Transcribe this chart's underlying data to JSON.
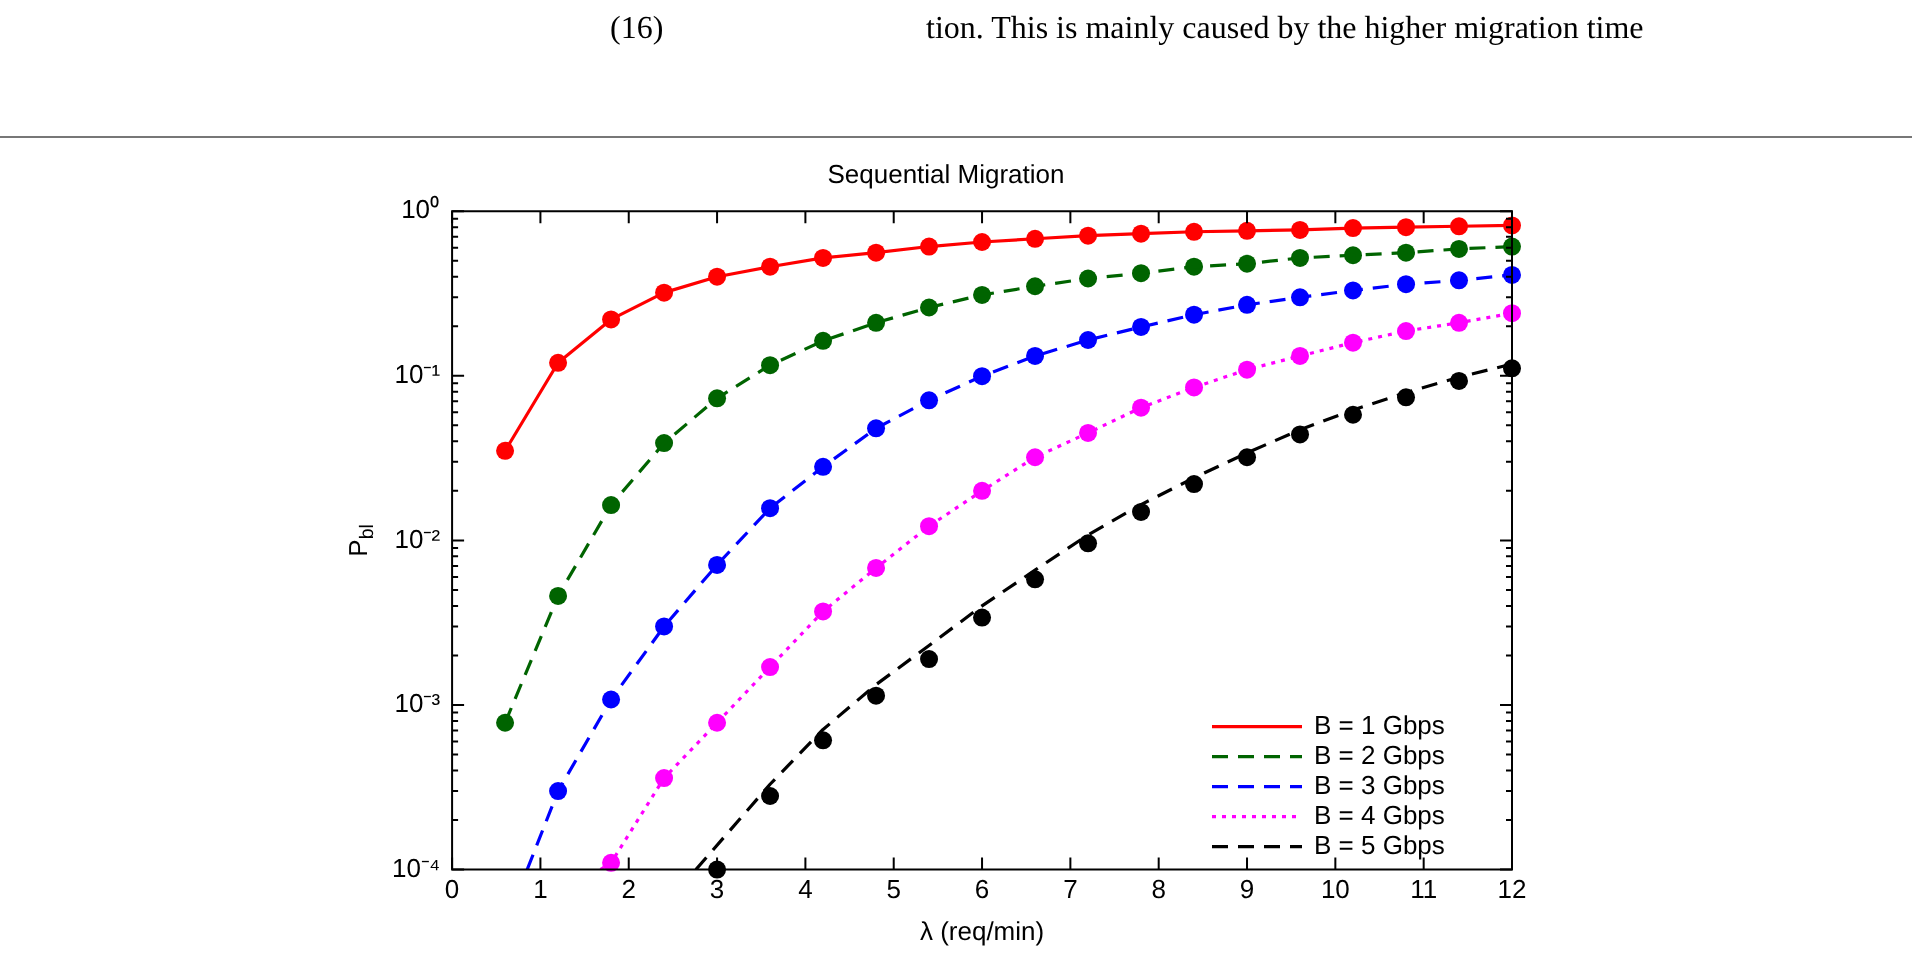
{
  "chart_data": {
    "type": "line",
    "title": "Sequential Migration",
    "xlabel": "λ (req/min)",
    "ylabel": "P$_{bl}$",
    "annotations": [
      "(16)",
      "tion. This is mainly caused by the higher migration time"
    ],
    "x": [
      0.6,
      1.2,
      1.8,
      2.4,
      3.0,
      3.6,
      4.2,
      4.8,
      5.4,
      6.0,
      6.6,
      7.2,
      7.8,
      8.4,
      9.0,
      9.6,
      10.2,
      10.8,
      11.4,
      12
    ],
    "series": [
      {
        "name": "B = 1 Gbps",
        "type": "line",
        "color": "#ff0000",
        "line_style": "solid",
        "marker": "none",
        "values": [
          0.035,
          0.12,
          0.22,
          0.32,
          0.4,
          0.46,
          0.52,
          0.56,
          0.61,
          0.65,
          0.68,
          0.71,
          0.73,
          0.75,
          0.76,
          0.77,
          0.79,
          0.8,
          0.81,
          0.82
        ]
      },
      {
        "name": "B = 2 Gbps",
        "type": "line",
        "color": "#006400",
        "line_style": "dashed",
        "marker": "none",
        "values": [
          0.00078,
          0.0046,
          0.0164,
          0.039,
          0.073,
          0.116,
          0.163,
          0.21,
          0.26,
          0.31,
          0.35,
          0.39,
          0.42,
          0.46,
          0.48,
          0.52,
          0.54,
          0.56,
          0.59,
          0.61
        ]
      },
      {
        "name": "B = 3 Gbps",
        "type": "line",
        "color": "#0000ff",
        "line_style": "dashed",
        "marker": "none",
        "x": [
          0.85,
          1.2,
          1.8,
          2.4,
          3.0,
          3.6,
          4.2,
          4.8,
          5.4,
          6.0,
          6.6,
          7.2,
          7.8,
          8.4,
          9.0,
          9.6,
          10.2,
          10.8,
          11.4,
          12
        ],
        "values": [
          0.0001,
          0.0003,
          0.00108,
          0.003,
          0.0071,
          0.0157,
          0.028,
          0.048,
          0.071,
          0.0995,
          0.132,
          0.165,
          0.198,
          0.235,
          0.27,
          0.3,
          0.33,
          0.36,
          0.38,
          0.41
        ]
      },
      {
        "name": "B = 4 Gbps",
        "type": "line",
        "color": "#ff00ff",
        "line_style": "dotted",
        "marker": "none",
        "x": [
          1.68,
          1.8,
          2.4,
          3.0,
          3.6,
          4.2,
          4.8,
          5.4,
          6.0,
          6.6,
          7.2,
          7.8,
          8.4,
          9.0,
          9.6,
          10.2,
          10.8,
          11.4,
          12
        ],
        "values": [
          0.0001,
          0.00011,
          0.00036,
          0.00078,
          0.0017,
          0.0037,
          0.0068,
          0.0122,
          0.02,
          0.032,
          0.045,
          0.064,
          0.085,
          0.109,
          0.132,
          0.159,
          0.187,
          0.21,
          0.24
        ]
      },
      {
        "name": "B = 5 Gbps",
        "type": "line",
        "color": "#000000",
        "line_style": "dashed",
        "marker": "none",
        "x": [
          2.76,
          3.6,
          4.2,
          4.8,
          5.4,
          6.0,
          6.6,
          7.2,
          7.8,
          8.4,
          9.0,
          9.6,
          10.2,
          10.8,
          11.4,
          12
        ],
        "values": [
          0.0001,
          0.00033,
          0.00071,
          0.00133,
          0.0023,
          0.004,
          0.0066,
          0.0108,
          0.0165,
          0.024,
          0.034,
          0.047,
          0.062,
          0.079,
          0.098,
          0.118
        ]
      },
      {
        "type": "scatter",
        "color": "#ff0000",
        "marker": "circle",
        "values": [
          0.035,
          0.12,
          0.22,
          0.32,
          0.4,
          0.46,
          0.52,
          0.56,
          0.61,
          0.65,
          0.68,
          0.71,
          0.73,
          0.75,
          0.76,
          0.77,
          0.79,
          0.8,
          0.81,
          0.82
        ]
      },
      {
        "type": "scatter",
        "color": "#006400",
        "marker": "circle",
        "values": [
          0.00078,
          0.0046,
          0.0164,
          0.039,
          0.073,
          0.116,
          0.163,
          0.21,
          0.26,
          0.31,
          0.35,
          0.39,
          0.42,
          0.46,
          0.48,
          0.52,
          0.54,
          0.56,
          0.59,
          0.61
        ]
      },
      {
        "type": "scatter",
        "color": "#0000ff",
        "marker": "circle",
        "values": [
          null,
          0.0003,
          0.00108,
          0.003,
          0.0071,
          0.0157,
          0.028,
          0.048,
          0.071,
          0.0995,
          0.132,
          0.165,
          0.198,
          0.235,
          0.27,
          0.3,
          0.33,
          0.36,
          0.38,
          0.41
        ]
      },
      {
        "type": "scatter",
        "color": "#ff00ff",
        "marker": "circle",
        "values": [
          null,
          null,
          0.00011,
          0.00036,
          0.00078,
          0.0017,
          0.0037,
          0.0068,
          0.0122,
          0.02,
          0.032,
          0.045,
          0.064,
          0.085,
          0.109,
          0.132,
          0.159,
          0.187,
          0.21,
          0.24
        ]
      },
      {
        "type": "scatter",
        "color": "#000000",
        "marker": "circle",
        "values": [
          null,
          null,
          null,
          null,
          0.0001,
          0.00028,
          0.00061,
          0.00114,
          0.0019,
          0.0034,
          0.0058,
          0.0096,
          0.0149,
          0.022,
          0.032,
          0.044,
          0.058,
          0.074,
          0.093,
          0.111
        ]
      }
    ],
    "xlim": [
      0,
      12
    ],
    "xticks": [
      0,
      1,
      2,
      3,
      4,
      5,
      6,
      7,
      8,
      9,
      10,
      11,
      12
    ],
    "ylim": [
      0.0001,
      1
    ],
    "yticks": [
      {
        "value": 0.0001,
        "label": "10⁻⁴"
      },
      {
        "value": 0.001,
        "label": "10⁻³"
      },
      {
        "value": 0.01,
        "label": "10⁻²"
      },
      {
        "value": 0.1,
        "label": "10⁻¹"
      },
      {
        "value": 1,
        "label": "10⁰"
      }
    ],
    "log": "y",
    "grid": false,
    "legend": "bottom right"
  }
}
